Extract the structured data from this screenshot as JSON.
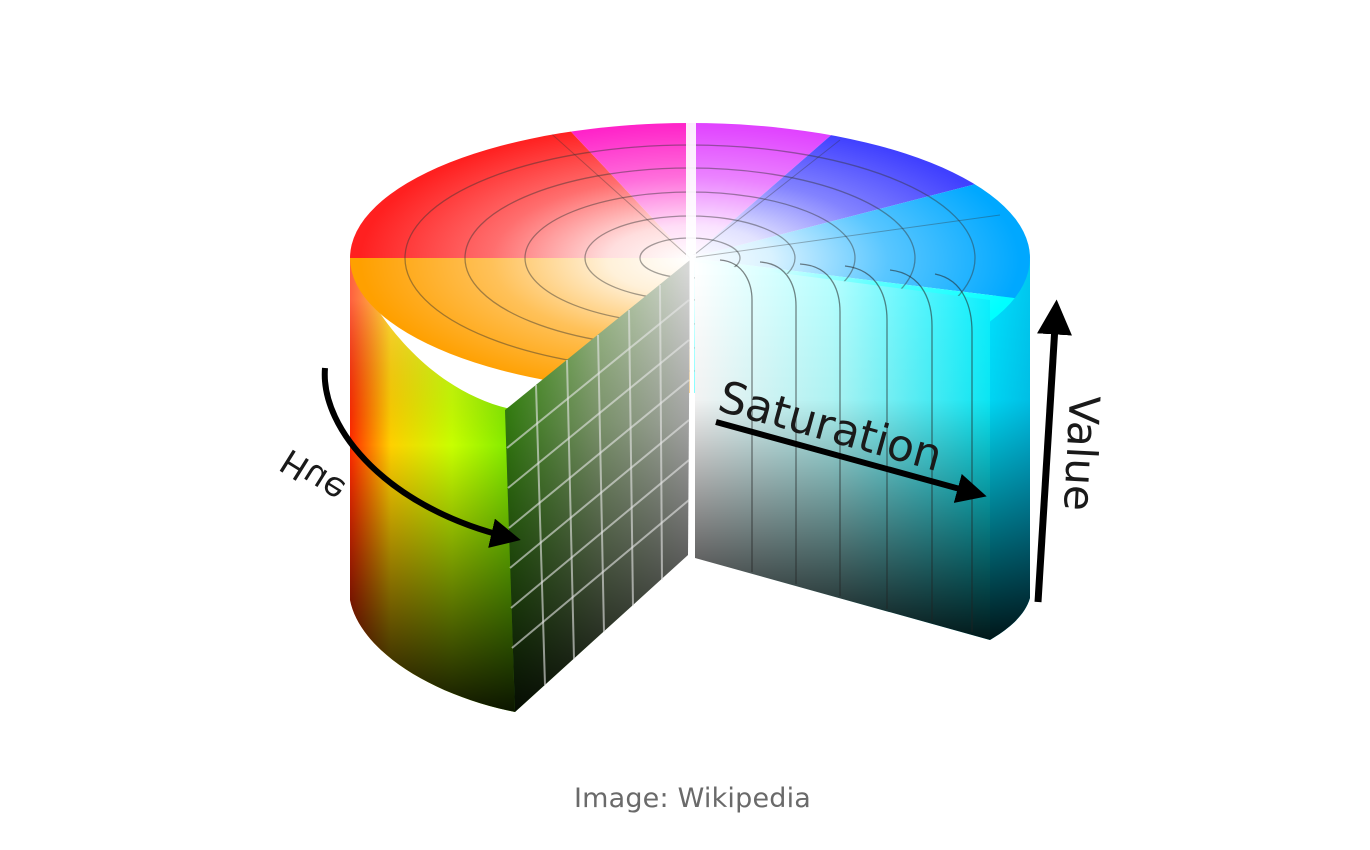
{
  "diagram": {
    "labels": {
      "hue": "Hue",
      "saturation": "Saturation",
      "value": "Value"
    },
    "colors": {
      "red": "#ff0000",
      "magenta": "#ff00ff",
      "blue": "#0000ff",
      "cyan": "#00ffff",
      "green": "#00ff00",
      "yellow": "#ffff00",
      "arrow": "#000000"
    }
  },
  "caption": "Image: Wikipedia"
}
